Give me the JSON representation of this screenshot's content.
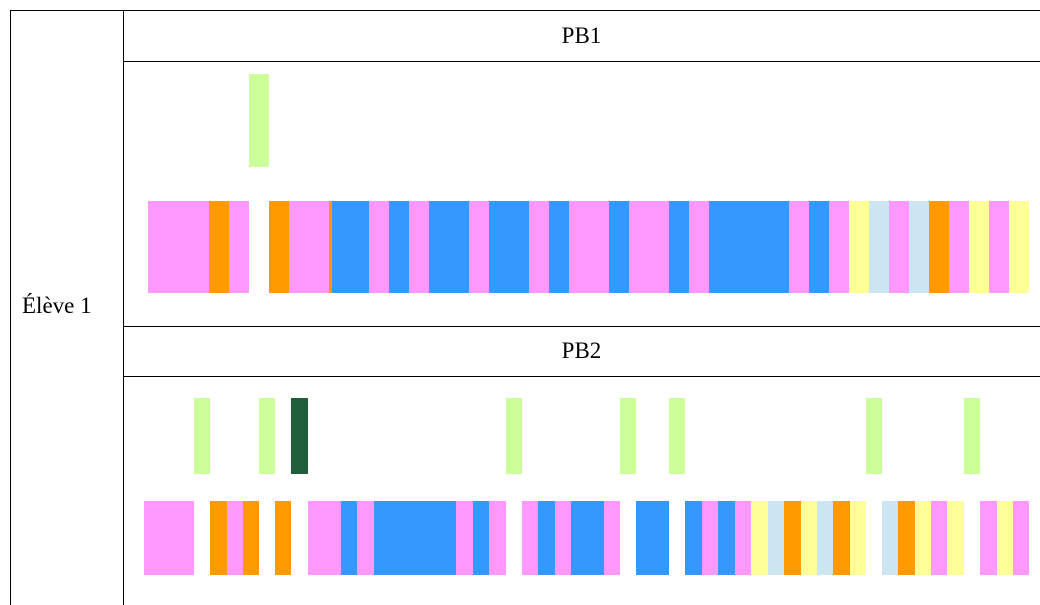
{
  "row_label": "Élève 1",
  "colors": {
    "pink": "#FF99FF",
    "orange": "#FF9900",
    "blue": "#3399FF",
    "yellow": "#FFFF99",
    "light_blue": "#CCE5F2",
    "light_green": "#CCFF99",
    "dark_green": "#1E5E3A"
  },
  "sections": [
    {
      "title": "PB1",
      "upper_marks": [
        {
          "start": 249,
          "end": 269,
          "color": "light_green"
        }
      ],
      "lower_segments": [
        {
          "start": 148,
          "end": 209,
          "color": "pink"
        },
        {
          "start": 209,
          "end": 229,
          "color": "orange"
        },
        {
          "start": 229,
          "end": 249,
          "color": "pink"
        },
        {
          "start": 269,
          "end": 289,
          "color": "orange"
        },
        {
          "start": 289,
          "end": 329,
          "color": "pink"
        },
        {
          "start": 329,
          "end": 332,
          "color": "orange"
        },
        {
          "start": 332,
          "end": 369,
          "color": "blue"
        },
        {
          "start": 369,
          "end": 389,
          "color": "pink"
        },
        {
          "start": 389,
          "end": 409,
          "color": "blue"
        },
        {
          "start": 409,
          "end": 429,
          "color": "pink"
        },
        {
          "start": 429,
          "end": 469,
          "color": "blue"
        },
        {
          "start": 469,
          "end": 489,
          "color": "pink"
        },
        {
          "start": 489,
          "end": 529,
          "color": "blue"
        },
        {
          "start": 529,
          "end": 549,
          "color": "pink"
        },
        {
          "start": 549,
          "end": 569,
          "color": "blue"
        },
        {
          "start": 569,
          "end": 609,
          "color": "pink"
        },
        {
          "start": 609,
          "end": 629,
          "color": "blue"
        },
        {
          "start": 629,
          "end": 669,
          "color": "pink"
        },
        {
          "start": 669,
          "end": 689,
          "color": "blue"
        },
        {
          "start": 689,
          "end": 709,
          "color": "pink"
        },
        {
          "start": 709,
          "end": 789,
          "color": "blue"
        },
        {
          "start": 789,
          "end": 809,
          "color": "pink"
        },
        {
          "start": 809,
          "end": 829,
          "color": "blue"
        },
        {
          "start": 829,
          "end": 849,
          "color": "pink"
        },
        {
          "start": 849,
          "end": 869,
          "color": "yellow"
        },
        {
          "start": 869,
          "end": 889,
          "color": "light_blue"
        },
        {
          "start": 889,
          "end": 909,
          "color": "pink"
        },
        {
          "start": 909,
          "end": 929,
          "color": "light_blue"
        },
        {
          "start": 929,
          "end": 949,
          "color": "orange"
        },
        {
          "start": 949,
          "end": 969,
          "color": "pink"
        },
        {
          "start": 969,
          "end": 989,
          "color": "yellow"
        },
        {
          "start": 989,
          "end": 1009,
          "color": "pink"
        },
        {
          "start": 1009,
          "end": 1029,
          "color": "yellow"
        }
      ]
    },
    {
      "title": "PB2",
      "upper_marks": [
        {
          "start": 194,
          "end": 210,
          "color": "light_green"
        },
        {
          "start": 259,
          "end": 275,
          "color": "light_green"
        },
        {
          "start": 291,
          "end": 308,
          "color": "dark_green"
        },
        {
          "start": 506,
          "end": 522,
          "color": "light_green"
        },
        {
          "start": 620,
          "end": 636,
          "color": "light_green"
        },
        {
          "start": 669,
          "end": 685,
          "color": "light_green"
        },
        {
          "start": 866,
          "end": 882,
          "color": "light_green"
        },
        {
          "start": 964,
          "end": 980,
          "color": "light_green"
        }
      ],
      "lower_segments": [
        {
          "start": 144,
          "end": 194,
          "color": "pink"
        },
        {
          "start": 210,
          "end": 227,
          "color": "orange"
        },
        {
          "start": 227,
          "end": 243,
          "color": "pink"
        },
        {
          "start": 243,
          "end": 259,
          "color": "orange"
        },
        {
          "start": 275,
          "end": 291,
          "color": "orange"
        },
        {
          "start": 308,
          "end": 341,
          "color": "pink"
        },
        {
          "start": 341,
          "end": 357,
          "color": "blue"
        },
        {
          "start": 357,
          "end": 374,
          "color": "pink"
        },
        {
          "start": 374,
          "end": 456,
          "color": "blue"
        },
        {
          "start": 456,
          "end": 473,
          "color": "pink"
        },
        {
          "start": 473,
          "end": 489,
          "color": "blue"
        },
        {
          "start": 489,
          "end": 506,
          "color": "pink"
        },
        {
          "start": 522,
          "end": 538,
          "color": "pink"
        },
        {
          "start": 538,
          "end": 555,
          "color": "blue"
        },
        {
          "start": 555,
          "end": 571,
          "color": "pink"
        },
        {
          "start": 571,
          "end": 604,
          "color": "blue"
        },
        {
          "start": 604,
          "end": 620,
          "color": "pink"
        },
        {
          "start": 636,
          "end": 669,
          "color": "blue"
        },
        {
          "start": 685,
          "end": 702,
          "color": "blue"
        },
        {
          "start": 702,
          "end": 718,
          "color": "pink"
        },
        {
          "start": 718,
          "end": 735,
          "color": "blue"
        },
        {
          "start": 735,
          "end": 751,
          "color": "pink"
        },
        {
          "start": 751,
          "end": 768,
          "color": "yellow"
        },
        {
          "start": 768,
          "end": 784,
          "color": "light_blue"
        },
        {
          "start": 784,
          "end": 801,
          "color": "orange"
        },
        {
          "start": 801,
          "end": 817,
          "color": "yellow"
        },
        {
          "start": 817,
          "end": 833,
          "color": "light_blue"
        },
        {
          "start": 833,
          "end": 850,
          "color": "orange"
        },
        {
          "start": 850,
          "end": 866,
          "color": "yellow"
        },
        {
          "start": 882,
          "end": 898,
          "color": "light_blue"
        },
        {
          "start": 898,
          "end": 915,
          "color": "orange"
        },
        {
          "start": 915,
          "end": 931,
          "color": "yellow"
        },
        {
          "start": 931,
          "end": 947,
          "color": "pink"
        },
        {
          "start": 947,
          "end": 964,
          "color": "yellow"
        },
        {
          "start": 980,
          "end": 997,
          "color": "pink"
        },
        {
          "start": 997,
          "end": 1013,
          "color": "yellow"
        },
        {
          "start": 1013,
          "end": 1029,
          "color": "pink"
        }
      ]
    }
  ]
}
